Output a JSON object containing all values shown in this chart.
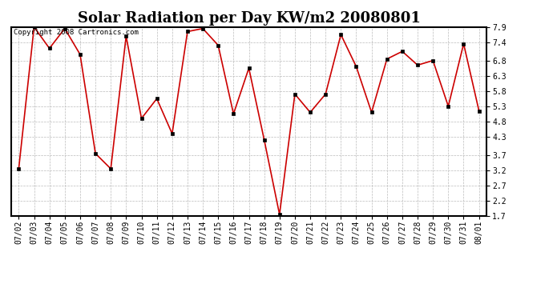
{
  "title": "Solar Radiation per Day KW/m2 20080801",
  "copyright_text": "Copyright 2008 Cartronics.com",
  "dates": [
    "07/02",
    "07/03",
    "07/04",
    "07/05",
    "07/06",
    "07/07",
    "07/08",
    "07/09",
    "07/10",
    "07/11",
    "07/12",
    "07/13",
    "07/14",
    "07/15",
    "07/16",
    "07/17",
    "07/18",
    "07/19",
    "07/20",
    "07/21",
    "07/22",
    "07/23",
    "07/24",
    "07/25",
    "07/26",
    "07/27",
    "07/28",
    "07/29",
    "07/30",
    "07/31",
    "08/01"
  ],
  "values": [
    3.25,
    7.9,
    7.2,
    7.85,
    7.0,
    3.75,
    3.25,
    7.6,
    4.9,
    5.55,
    4.4,
    7.75,
    7.85,
    7.3,
    5.05,
    6.55,
    4.2,
    1.75,
    5.7,
    5.1,
    5.7,
    7.65,
    6.6,
    5.1,
    6.85,
    7.1,
    6.65,
    6.8,
    5.3,
    7.35,
    5.15
  ],
  "line_color": "#cc0000",
  "marker_color": "#000000",
  "bg_color": "#ffffff",
  "plot_bg_color": "#ffffff",
  "grid_color": "#bbbbbb",
  "ylim_min": 1.7,
  "ylim_max": 7.9,
  "yticks": [
    1.7,
    2.2,
    2.7,
    3.2,
    3.7,
    4.3,
    4.8,
    5.3,
    5.8,
    6.3,
    6.8,
    7.4,
    7.9
  ],
  "title_fontsize": 13,
  "tick_fontsize": 7,
  "copyright_fontsize": 6.5
}
